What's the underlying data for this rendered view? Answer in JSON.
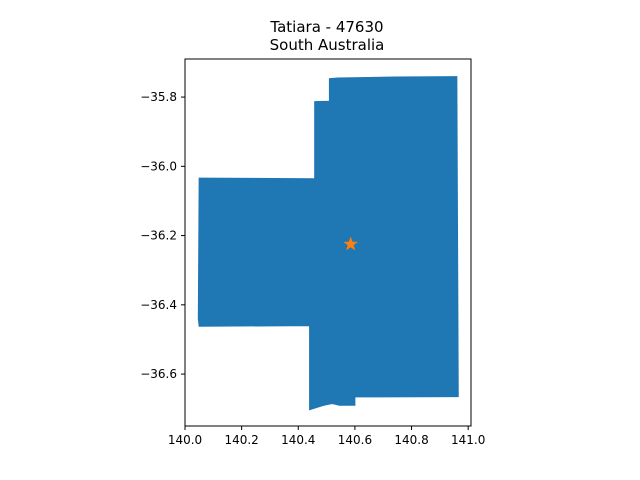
{
  "figure": {
    "title": "Tatiara - 47630",
    "subtitle": "South Australia"
  },
  "colors": {
    "region_fill": "#1f77b4",
    "marker": "#ff7f0e",
    "axes": "#000000",
    "background": "#ffffff"
  },
  "chart_data": {
    "type": "map",
    "title": "Tatiara - 47630",
    "subtitle": "South Australia",
    "xlim": [
      140.0,
      141.01
    ],
    "ylim": [
      -36.75,
      -35.69
    ],
    "xticks": [
      140.0,
      140.2,
      140.4,
      140.6,
      140.8,
      141.0
    ],
    "xtick_labels": [
      "140.0",
      "140.2",
      "140.4",
      "140.6",
      "140.8",
      "141.0"
    ],
    "yticks": [
      -35.8,
      -36.0,
      -36.2,
      -36.4,
      -36.6
    ],
    "ytick_labels": [
      "−35.8",
      "−36.0",
      "−36.2",
      "−36.4",
      "−36.6"
    ],
    "grid": false,
    "region": {
      "name": "Tatiara",
      "boundary_lon_lat": [
        [
          140.54,
          -35.745
        ],
        [
          140.745,
          -35.742
        ],
        [
          140.96,
          -35.741
        ],
        [
          140.965,
          -36.665
        ],
        [
          140.625,
          -36.666
        ],
        [
          140.6,
          -36.666
        ],
        [
          140.6,
          -36.69
        ],
        [
          140.545,
          -36.69
        ],
        [
          140.52,
          -36.685
        ],
        [
          140.49,
          -36.69
        ],
        [
          140.44,
          -36.703
        ],
        [
          140.44,
          -36.46
        ],
        [
          140.05,
          -36.462
        ],
        [
          140.047,
          -36.44
        ],
        [
          140.05,
          -36.034
        ],
        [
          140.458,
          -36.036
        ],
        [
          140.458,
          -35.813
        ],
        [
          140.51,
          -35.812
        ],
        [
          140.51,
          -35.747
        ]
      ]
    },
    "marker": {
      "shape": "star",
      "lon": 140.585,
      "lat": -36.225
    }
  }
}
